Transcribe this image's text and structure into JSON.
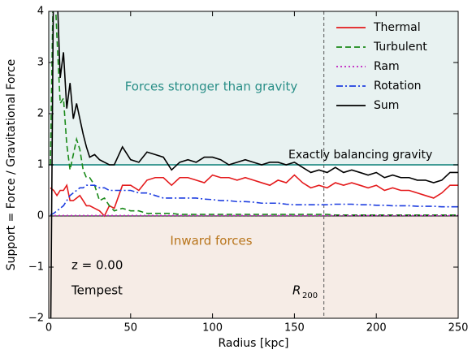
{
  "chart_data": {
    "type": "line",
    "xlabel": "Radius [kpc]",
    "ylabel": "Support = Force / Gravitational Force",
    "xlim": [
      0,
      250
    ],
    "ylim": [
      -2,
      4
    ],
    "xticks": [
      0,
      50,
      100,
      150,
      200,
      250
    ],
    "yticks": [
      {
        "value": -2,
        "label": "−2"
      },
      {
        "value": -1,
        "label": "−1"
      },
      0,
      1,
      2,
      3,
      4
    ],
    "legend": "upper right",
    "annotations": {
      "above": "Forces stronger than gravity",
      "balance": "Exactly balancing gravity",
      "below": "Inward forces",
      "redshift": "z = 0.00",
      "name": "Tempest",
      "r200_main": "R",
      "r200_sub": "200"
    },
    "balance_line": 1,
    "r200": 168,
    "x": [
      1,
      3,
      5,
      7,
      9,
      11,
      13,
      15,
      17,
      19,
      21,
      23,
      25,
      28,
      31,
      34,
      37,
      40,
      45,
      50,
      55,
      60,
      65,
      70,
      75,
      80,
      85,
      90,
      95,
      100,
      105,
      110,
      115,
      120,
      125,
      130,
      135,
      140,
      145,
      150,
      155,
      160,
      165,
      170,
      175,
      180,
      185,
      190,
      195,
      200,
      205,
      210,
      215,
      220,
      225,
      230,
      235,
      240,
      245,
      250
    ],
    "series": [
      {
        "name": "Thermal",
        "color": "#e41a1c",
        "linestyle": "solid",
        "values": [
          0.55,
          0.5,
          0.4,
          0.5,
          0.5,
          0.6,
          0.3,
          0.3,
          0.35,
          0.4,
          0.3,
          0.2,
          0.2,
          0.15,
          0.1,
          0.0,
          0.2,
          0.15,
          0.6,
          0.6,
          0.5,
          0.7,
          0.75,
          0.75,
          0.6,
          0.75,
          0.75,
          0.7,
          0.65,
          0.8,
          0.75,
          0.75,
          0.7,
          0.75,
          0.7,
          0.65,
          0.6,
          0.7,
          0.65,
          0.8,
          0.65,
          0.55,
          0.6,
          0.55,
          0.65,
          0.6,
          0.65,
          0.6,
          0.55,
          0.6,
          0.5,
          0.55,
          0.5,
          0.5,
          0.45,
          0.4,
          0.35,
          0.45,
          0.6,
          0.6
        ]
      },
      {
        "name": "Turbulent",
        "color": "#1a8a1a",
        "linestyle": "dashed",
        "values": [
          1.0,
          5,
          3.5,
          2.2,
          2.3,
          1.4,
          0.9,
          1.2,
          1.5,
          1.3,
          0.9,
          0.75,
          0.75,
          0.6,
          0.3,
          0.35,
          0.2,
          0.1,
          0.15,
          0.1,
          0.1,
          0.05,
          0.05,
          0.05,
          0.05,
          0.03,
          0.03,
          0.03,
          0.03,
          0.03,
          0.03,
          0.03,
          0.03,
          0.03,
          0.03,
          0.03,
          0.03,
          0.03,
          0.03,
          0.03,
          0.03,
          0.03,
          0.03,
          0.03,
          0.02,
          0.02,
          0.02,
          0.02,
          0.02,
          0.02,
          0.02,
          0.02,
          0.02,
          0.02,
          0.02,
          0.02,
          0.02,
          0.02,
          0.02,
          0.02
        ]
      },
      {
        "name": "Ram",
        "color": "#c020c0",
        "linestyle": "dotted",
        "values": [
          0.01,
          0.01,
          0.01,
          0.01,
          0.01,
          0.01,
          0.01,
          0.01,
          0.01,
          0.01,
          0.01,
          0.01,
          0.01,
          0.01,
          0.01,
          0.01,
          0.01,
          0.01,
          0.01,
          0.01,
          0.01,
          0.01,
          0.01,
          0.01,
          0.01,
          0.01,
          0.01,
          0.01,
          0.01,
          0.01,
          0.01,
          0.01,
          0.01,
          0.01,
          0.01,
          0.01,
          0.01,
          0.01,
          0.01,
          0.01,
          0.01,
          0.01,
          0.01,
          0.01,
          0.01,
          0.01,
          0.01,
          0.01,
          0.01,
          0.01,
          0.01,
          0.01,
          0.01,
          0.01,
          0.01,
          0.01,
          0.01,
          0.01,
          0.01,
          0.01
        ]
      },
      {
        "name": "Rotation",
        "color": "#1f3fe0",
        "linestyle": "dashdot",
        "values": [
          0.02,
          0.05,
          0.1,
          0.15,
          0.2,
          0.3,
          0.4,
          0.45,
          0.5,
          0.55,
          0.55,
          0.6,
          0.6,
          0.6,
          0.55,
          0.55,
          0.5,
          0.5,
          0.5,
          0.5,
          0.45,
          0.45,
          0.4,
          0.35,
          0.35,
          0.35,
          0.35,
          0.35,
          0.33,
          0.32,
          0.3,
          0.3,
          0.28,
          0.28,
          0.27,
          0.25,
          0.25,
          0.25,
          0.23,
          0.22,
          0.22,
          0.22,
          0.22,
          0.22,
          0.23,
          0.23,
          0.23,
          0.22,
          0.22,
          0.21,
          0.21,
          0.2,
          0.2,
          0.2,
          0.19,
          0.19,
          0.19,
          0.18,
          0.18,
          0.18
        ]
      },
      {
        "name": "Sum",
        "color": "#000000",
        "linestyle": "solid",
        "values": [
          -3,
          5,
          4.5,
          2.7,
          3.2,
          2.1,
          2.6,
          1.9,
          2.2,
          1.9,
          1.6,
          1.35,
          1.15,
          1.2,
          1.1,
          1.05,
          1.0,
          1.0,
          1.35,
          1.1,
          1.05,
          1.25,
          1.2,
          1.15,
          0.9,
          1.05,
          1.1,
          1.05,
          1.15,
          1.15,
          1.1,
          1.0,
          1.05,
          1.1,
          1.05,
          1.0,
          1.05,
          1.05,
          1.0,
          1.05,
          0.95,
          0.85,
          0.9,
          0.85,
          0.95,
          0.85,
          0.9,
          0.85,
          0.8,
          0.85,
          0.75,
          0.8,
          0.75,
          0.75,
          0.7,
          0.7,
          0.65,
          0.7,
          0.85,
          0.85
        ]
      }
    ]
  }
}
